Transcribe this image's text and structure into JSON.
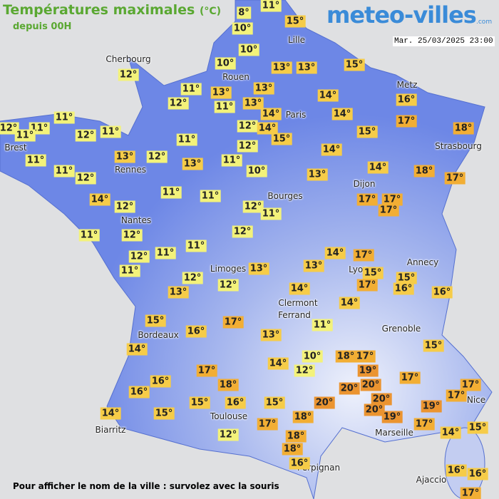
{
  "header": {
    "title": "Températures maximales",
    "unit": "(°C)",
    "subtitle": "depuis 00H",
    "logo": "meteo-villes",
    "logo_suffix": ".com",
    "date": "Mar. 25/03/2025 23:00"
  },
  "cities": [
    "Cherbourg",
    "Lille",
    "Rouen",
    "Metz",
    "Paris",
    "Brest",
    "Strasbourg",
    "Rennes",
    "Dijon",
    "Bourges",
    "Nantes",
    "Annecy",
    "Limoges",
    "Lyon",
    "Clermont",
    "Ferrand",
    "Grenoble",
    "Bordeaux",
    "Nice",
    "Toulouse",
    "Marseille",
    "Biarritz",
    "Perpignan",
    "Ajaccio"
  ],
  "temperatures": [
    "11°",
    "8°",
    "15°",
    "10°",
    "10°",
    "10°",
    "13°",
    "13°",
    "15°",
    "12°",
    "11°",
    "13°",
    "13°",
    "12°",
    "11°",
    "13°",
    "14°",
    "14°",
    "14°",
    "16°",
    "11°",
    "12°",
    "11°",
    "11°",
    "12°",
    "11°",
    "12°",
    "14°",
    "15°",
    "15°",
    "17°",
    "18°",
    "11°",
    "12°",
    "13°",
    "12°",
    "13°",
    "11°",
    "14°",
    "11°",
    "11°",
    "12°",
    "10°",
    "13°",
    "14°",
    "18°",
    "17°",
    "14°",
    "12°",
    "11°",
    "11°",
    "12°",
    "11°",
    "17°",
    "17°",
    "17°",
    "11°",
    "12°",
    "12°",
    "14°",
    "17°",
    "12°",
    "11°",
    "11°",
    "15°",
    "15°",
    "16°",
    "11°",
    "12°",
    "13°",
    "13°",
    "17°",
    "16°",
    "13°",
    "12°",
    "14°",
    "14°",
    "15°",
    "16°",
    "17°",
    "11°",
    "13°",
    "14°",
    "15°",
    "10°",
    "18°",
    "17°",
    "14°",
    "12°",
    "19°",
    "17°",
    "17°",
    "20°",
    "20°",
    "18°",
    "16°",
    "17°",
    "17°",
    "16°",
    "20°",
    "20°",
    "19°",
    "20°",
    "16°",
    "15°",
    "15°",
    "19°",
    "14°",
    "15°",
    "18°",
    "17°",
    "17°",
    "14°",
    "15°",
    "12°",
    "18°",
    "18°",
    "16°",
    "16°",
    "16°",
    "17°"
  ],
  "footer": "Pour afficher le nom de la ville : survolez avec la souris"
}
